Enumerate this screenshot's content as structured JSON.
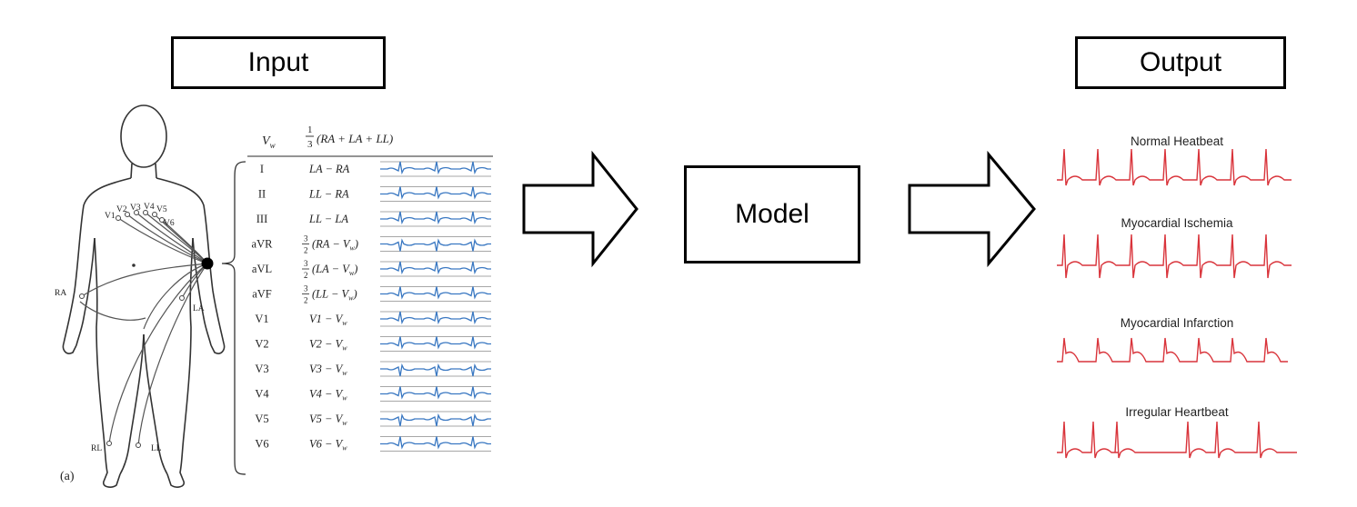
{
  "labels": {
    "input": "Input",
    "output": "Output",
    "model": "Model"
  },
  "figure_tag": "(a)",
  "limbs": {
    "RA": "RA",
    "LA": "LA",
    "RL": "RL",
    "LL": "LL"
  },
  "chest_leads": [
    "V1",
    "V2",
    "V3",
    "V4",
    "V5",
    "V6"
  ],
  "lead_table": {
    "header": {
      "name": "V",
      "name_sub": "w",
      "formula": "(RA + LA + LL)",
      "coef_num": "1",
      "coef_den": "3"
    },
    "rows": [
      {
        "name": "I",
        "formula": "LA − RA",
        "coef": null
      },
      {
        "name": "II",
        "formula": "LL − RA",
        "coef": null
      },
      {
        "name": "III",
        "formula": "LL − LA",
        "coef": null
      },
      {
        "name": "aVR",
        "formula": "(RA − V",
        "coef": "3/2"
      },
      {
        "name": "aVL",
        "formula": "(LA − V",
        "coef": "3/2"
      },
      {
        "name": "aVF",
        "formula": "(LL − V",
        "coef": "3/2"
      },
      {
        "name": "V1",
        "formula": "V1 − V",
        "coef": null
      },
      {
        "name": "V2",
        "formula": "V2 − V",
        "coef": null
      },
      {
        "name": "V3",
        "formula": "V3 − V",
        "coef": null
      },
      {
        "name": "V4",
        "formula": "V4 − V",
        "coef": null
      },
      {
        "name": "V5",
        "formula": "V5 − V",
        "coef": null
      },
      {
        "name": "V6",
        "formula": "V6 − V",
        "coef": null
      }
    ]
  },
  "output_conditions": [
    "Normal Heatbeat",
    "Myocardial Ischemia",
    "Myocardial Infarction",
    "Irregular Heartbeat"
  ],
  "colors": {
    "trace_blue": "#3a78c2",
    "trace_red": "#d9343b",
    "grid": "#8a8a8a"
  }
}
